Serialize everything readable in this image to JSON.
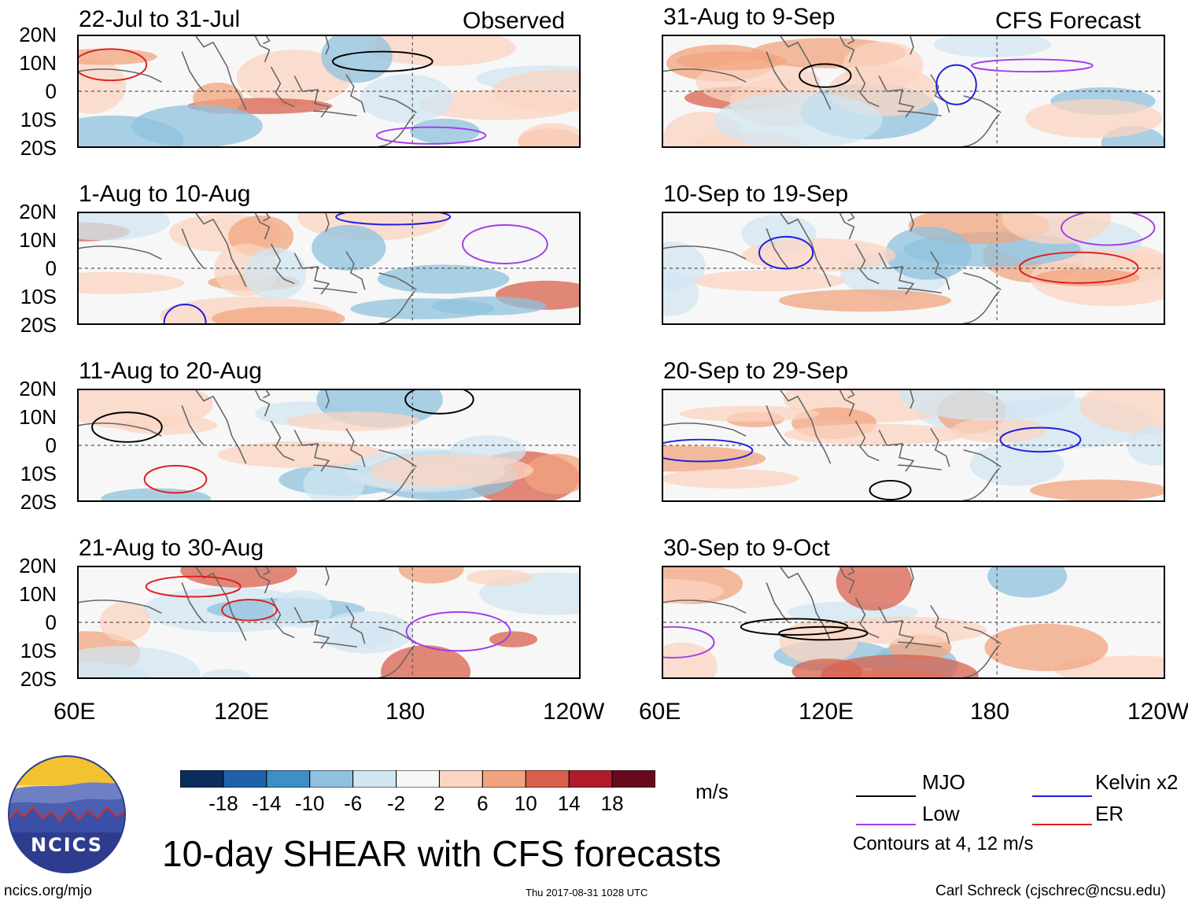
{
  "figure": {
    "title": "10-day SHEAR with CFS forecasts",
    "observed_label": "Observed",
    "forecast_label": "CFS Forecast",
    "url": "ncics.org/mjo",
    "timestamp": "Thu 2017-08-31 1028 UTC",
    "credit": "Carl Schreck (cjschrec@ncsu.edu)",
    "logo_text": "NCICS",
    "units": "m/s"
  },
  "chart_data": {
    "type": "heatmap",
    "lat_ticks": [
      "20N",
      "10N",
      "0",
      "10S",
      "20S"
    ],
    "lon_ticks": [
      "60E",
      "120E",
      "180",
      "120W"
    ],
    "panels_observed": [
      {
        "label": "22-Jul to 31-Jul"
      },
      {
        "label": "1-Aug to 10-Aug"
      },
      {
        "label": "11-Aug to 20-Aug"
      },
      {
        "label": "21-Aug to 30-Aug"
      }
    ],
    "panels_forecast": [
      {
        "label": "31-Aug to 9-Sep"
      },
      {
        "label": "10-Sep to 19-Sep"
      },
      {
        "label": "20-Sep to 29-Sep"
      },
      {
        "label": "30-Sep to 9-Oct"
      }
    ],
    "colorbar": {
      "ticks": [
        "-18",
        "-14",
        "-10",
        "-6",
        "-2",
        "2",
        "6",
        "10",
        "14",
        "18"
      ],
      "colors": [
        "#0b2d5c",
        "#1f62ab",
        "#3d8fc5",
        "#8fc1de",
        "#d2e6f2",
        "#f7f7f7",
        "#fbd4c2",
        "#f1a47f",
        "#d8614d",
        "#b01c2c",
        "#670a1f"
      ]
    },
    "legend": [
      {
        "label": "MJO",
        "color": "#000000"
      },
      {
        "label": "Kelvin x2",
        "color": "#1e1ee0"
      },
      {
        "label": "Low",
        "color": "#a23ee8"
      },
      {
        "label": "ER",
        "color": "#e01e1e"
      }
    ],
    "contour_note": "Contours at 4, 12 m/s"
  }
}
